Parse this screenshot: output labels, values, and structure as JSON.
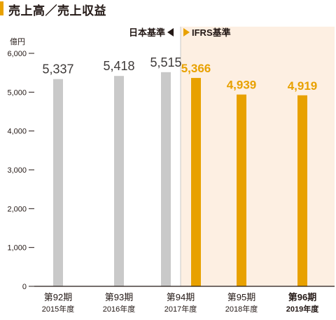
{
  "title": "売上高／売上収益",
  "colors": {
    "accent": "#e8a100",
    "japan_gaap_bar": "#c9c9c9",
    "ifrs_bar": "#e8a100",
    "ifrs_background": "#fdefe2",
    "divider": "#c8c8c8"
  },
  "chart_data": {
    "type": "bar",
    "title": "売上高／売上収益",
    "unit_label": "億円",
    "ylim": [
      0,
      6000
    ],
    "y_ticks": [
      0,
      1000,
      2000,
      3000,
      4000,
      5000,
      6000
    ],
    "y_tick_labels": [
      "0",
      "1,000",
      "2,000",
      "3,000",
      "4,000",
      "5,000",
      "6,000"
    ],
    "grid": false,
    "categories": [
      {
        "period": "第92期",
        "fiscal_year": "2015年度"
      },
      {
        "period": "第93期",
        "fiscal_year": "2016年度"
      },
      {
        "period": "第94期",
        "fiscal_year": "2017年度"
      },
      {
        "period": "第95期",
        "fiscal_year": "2018年度"
      },
      {
        "period": "第96期",
        "fiscal_year": "2019年度"
      }
    ],
    "series": [
      {
        "name": "日本基準",
        "values": [
          5337,
          5418,
          5515,
          null,
          null
        ]
      },
      {
        "name": "IFRS基準",
        "values": [
          null,
          null,
          5366,
          4939,
          4919
        ]
      }
    ],
    "data_labels": [
      "5,337",
      "5,418",
      "5,515",
      "5,366",
      "4,939",
      "4,919"
    ],
    "standard_labels": {
      "japan_gaap": "日本基準",
      "ifrs": "IFRS基準"
    },
    "highlighted_category_index": 4
  }
}
